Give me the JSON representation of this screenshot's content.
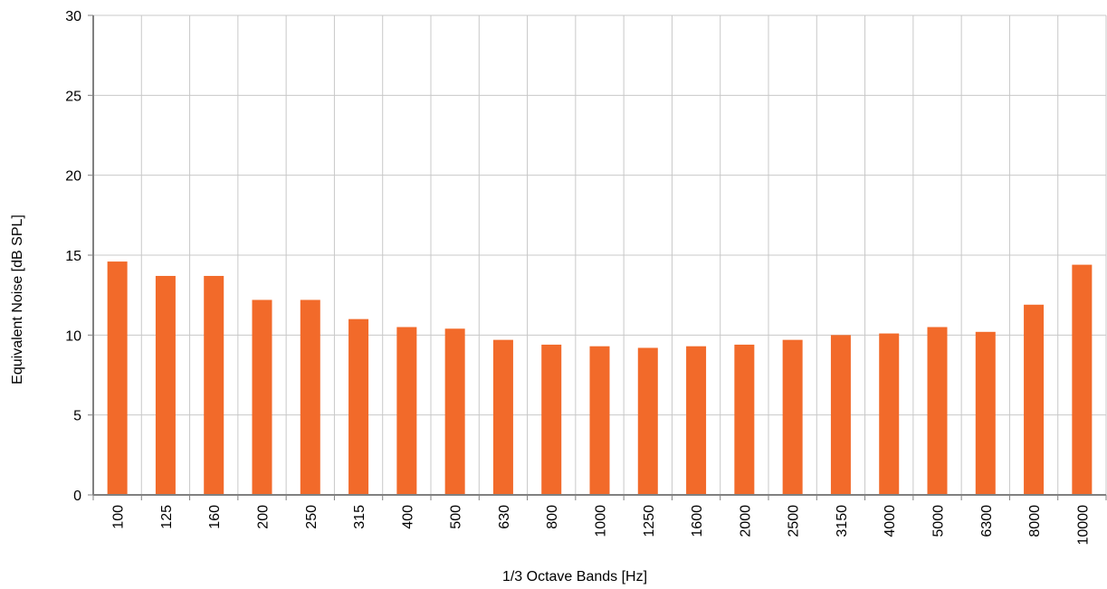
{
  "colors": {
    "bar": "#f26a2a",
    "grid": "#c8c8c8",
    "axis": "#808080"
  },
  "chart_data": {
    "type": "bar",
    "xlabel": "1/3 Octave Bands [Hz]",
    "ylabel": "Equivalent Noise  [dB SPL]",
    "ylim": [
      0,
      30
    ],
    "yticks": [
      0,
      5,
      10,
      15,
      20,
      25,
      30
    ],
    "grid": true,
    "categories": [
      "100",
      "125",
      "160",
      "200",
      "250",
      "315",
      "400",
      "500",
      "630",
      "800",
      "1000",
      "1250",
      "1600",
      "2000",
      "2500",
      "3150",
      "4000",
      "5000",
      "6300",
      "8000",
      "10000"
    ],
    "values": [
      14.6,
      13.7,
      13.7,
      12.2,
      12.2,
      11.0,
      10.5,
      10.4,
      9.7,
      9.4,
      9.3,
      9.2,
      9.3,
      9.4,
      9.7,
      10.0,
      10.1,
      10.5,
      10.2,
      11.9,
      14.4
    ]
  }
}
